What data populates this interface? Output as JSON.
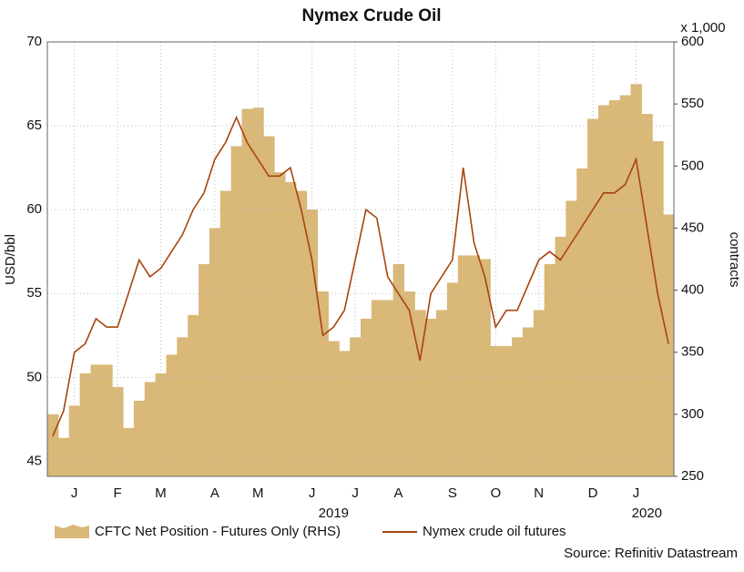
{
  "chart_data": {
    "type": "bar-line-dual-axis",
    "title": "Nymex Crude Oil",
    "ylabel": "USD/bbl",
    "y2label": "contracts",
    "y2_unit_label": "x 1,000",
    "source": "Source: Refinitiv Datastream",
    "categories": [
      null,
      null,
      "J",
      null,
      null,
      null,
      "F",
      null,
      null,
      null,
      "M",
      null,
      null,
      null,
      null,
      "A",
      null,
      null,
      null,
      "M",
      null,
      null,
      null,
      null,
      "J",
      null,
      null,
      null,
      "J",
      null,
      null,
      null,
      "A",
      null,
      null,
      null,
      null,
      "S",
      null,
      null,
      null,
      "O",
      null,
      null,
      null,
      "N",
      null,
      null,
      null,
      null,
      "D",
      null,
      null,
      null,
      "J",
      null,
      null,
      null
    ],
    "x_group_labels": [
      "2019",
      "2020"
    ],
    "ylim": [
      44.1,
      70
    ],
    "yticks": [
      45,
      50,
      55,
      60,
      65,
      70
    ],
    "y2lim": [
      250,
      600
    ],
    "y2ticks": [
      250,
      300,
      350,
      400,
      450,
      500,
      550,
      600
    ],
    "grid": true,
    "series": [
      {
        "name": "CFTC Net Position - Futures Only (RHS)",
        "color": "#d9b878",
        "axis": "y2",
        "kind": "area",
        "values": [
          300,
          281,
          307,
          333,
          340,
          340,
          322,
          289,
          311,
          326,
          333,
          348,
          362,
          380,
          421,
          450,
          480,
          516,
          546,
          547,
          524,
          495,
          487,
          480,
          465,
          399,
          359,
          351,
          362,
          377,
          392,
          392,
          421,
          399,
          384,
          377,
          384,
          406,
          428,
          428,
          425,
          355,
          355,
          362,
          370,
          384,
          421,
          443,
          472,
          498,
          538,
          549,
          553,
          557,
          566,
          542,
          520,
          461
        ]
      },
      {
        "name": "Nymex crude oil futures",
        "color": "#a8440f",
        "kind": "line",
        "values": [
          46.5,
          48,
          51.5,
          52,
          53.5,
          53,
          53,
          55,
          57,
          56,
          56.5,
          57.5,
          58.5,
          60,
          61,
          63,
          64,
          65.5,
          64,
          63,
          62,
          62,
          62.5,
          60,
          57,
          52.5,
          53,
          54,
          57,
          60,
          59.5,
          56,
          55,
          54,
          51,
          55,
          56,
          57,
          62.5,
          58,
          56,
          53,
          54,
          54,
          55.5,
          57,
          57.5,
          57,
          58,
          59,
          60,
          61,
          61,
          61.5,
          63,
          59,
          55,
          52
        ]
      }
    ]
  }
}
